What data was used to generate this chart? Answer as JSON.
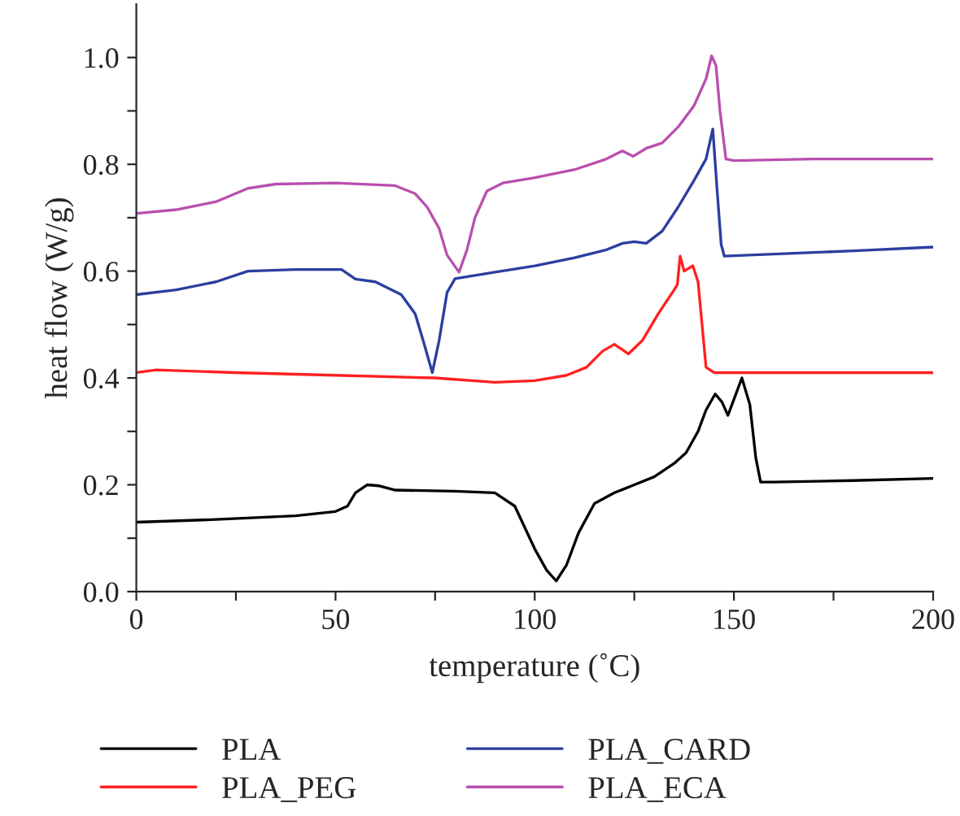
{
  "chart_data": {
    "type": "line",
    "xlabel": "temperature (˚C)",
    "ylabel": "heat flow (W/g)",
    "xlim": [
      0,
      200
    ],
    "ylim": [
      0,
      1.1
    ],
    "xticks": [
      0,
      {
        "value": 25,
        "label": null
      },
      50,
      {
        "value": 75,
        "label": null
      },
      100,
      {
        "value": 125,
        "label": null
      },
      150,
      {
        "value": 175,
        "label": null
      },
      200
    ],
    "yticks": [
      {
        "value": 0,
        "label": "0.0"
      },
      {
        "value": 0.1,
        "label": null
      },
      {
        "value": 0.2,
        "label": "0.2"
      },
      {
        "value": 0.3,
        "label": null
      },
      {
        "value": 0.4,
        "label": "0.4"
      },
      {
        "value": 0.5,
        "label": null
      },
      {
        "value": 0.6,
        "label": "0.6"
      },
      {
        "value": 0.7,
        "label": null
      },
      {
        "value": 0.8,
        "label": "0.8"
      },
      {
        "value": 0.9,
        "label": null
      },
      {
        "value": 1.0,
        "label": "1.0"
      }
    ],
    "grid": false,
    "legend": "bottom",
    "line_style": "solid",
    "marker": "none",
    "series": [
      {
        "name": "PLA",
        "color": "#000000",
        "x": [
          0,
          20,
          40,
          50,
          53,
          55,
          58,
          61,
          65,
          80,
          90,
          95,
          100,
          103,
          105.4,
          108,
          111,
          115,
          120,
          125,
          130,
          135,
          138,
          141,
          143,
          145.3,
          147,
          148.5,
          150,
          152,
          154,
          155.5,
          156.7,
          160,
          180,
          200
        ],
        "values": [
          0.13,
          0.135,
          0.142,
          0.15,
          0.16,
          0.185,
          0.2,
          0.198,
          0.19,
          0.188,
          0.185,
          0.16,
          0.08,
          0.04,
          0.02,
          0.05,
          0.11,
          0.165,
          0.185,
          0.2,
          0.215,
          0.24,
          0.26,
          0.3,
          0.34,
          0.37,
          0.355,
          0.33,
          0.36,
          0.4,
          0.35,
          0.25,
          0.205,
          0.205,
          0.208,
          0.212
        ]
      },
      {
        "name": "PLA_PEG",
        "color": "#ff2020",
        "x": [
          0,
          5,
          25,
          50,
          75,
          90,
          100,
          108,
          113,
          117,
          120,
          123.5,
          127,
          131,
          135,
          135.8,
          136.5,
          137.5,
          139.7,
          141,
          142,
          143,
          145,
          170,
          200
        ],
        "values": [
          0.41,
          0.415,
          0.41,
          0.405,
          0.4,
          0.392,
          0.395,
          0.405,
          0.42,
          0.45,
          0.463,
          0.445,
          0.47,
          0.52,
          0.565,
          0.575,
          0.628,
          0.6,
          0.61,
          0.58,
          0.5,
          0.42,
          0.41,
          0.41,
          0.41
        ]
      },
      {
        "name": "PLA_CARD",
        "color": "#2b3ea0",
        "x": [
          0,
          10,
          20,
          28,
          40,
          51.5,
          55,
          60,
          66.5,
          70,
          72,
          74.3,
          76,
          78,
          80,
          90,
          100,
          110,
          118,
          122,
          125,
          128,
          132,
          136,
          140,
          143,
          144.7,
          145.8,
          146.8,
          147.6,
          160,
          180,
          200
        ],
        "values": [
          0.556,
          0.565,
          0.58,
          0.6,
          0.603,
          0.603,
          0.585,
          0.58,
          0.556,
          0.52,
          0.47,
          0.41,
          0.47,
          0.56,
          0.586,
          0.598,
          0.61,
          0.625,
          0.64,
          0.652,
          0.655,
          0.652,
          0.675,
          0.72,
          0.77,
          0.81,
          0.866,
          0.75,
          0.65,
          0.628,
          0.632,
          0.638,
          0.645
        ]
      },
      {
        "name": "PLA_ECA",
        "color": "#b94fae",
        "x": [
          0,
          10,
          20,
          28,
          35,
          50,
          65,
          70,
          73,
          76,
          78,
          81,
          83,
          85,
          88,
          92,
          100,
          110,
          118,
          122,
          124.7,
          128,
          132,
          136,
          140,
          143,
          144.4,
          145.5,
          146.5,
          148,
          150,
          170,
          200
        ],
        "values": [
          0.708,
          0.715,
          0.73,
          0.755,
          0.763,
          0.765,
          0.76,
          0.745,
          0.72,
          0.68,
          0.63,
          0.598,
          0.64,
          0.7,
          0.75,
          0.765,
          0.775,
          0.79,
          0.81,
          0.825,
          0.815,
          0.83,
          0.84,
          0.87,
          0.91,
          0.96,
          1.003,
          0.985,
          0.9,
          0.81,
          0.807,
          0.81,
          0.81
        ]
      }
    ]
  }
}
